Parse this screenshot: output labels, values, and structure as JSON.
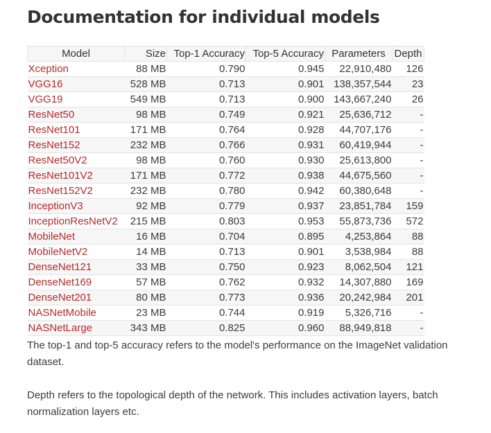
{
  "page": {
    "title": "Documentation for individual models"
  },
  "table": {
    "headers": {
      "model": "Model",
      "size": "Size",
      "top1": "Top-1 Accuracy",
      "top5": "Top-5 Accuracy",
      "params": "Parameters",
      "depth": "Depth"
    },
    "rows": [
      {
        "model": "Xception",
        "size": "88 MB",
        "top1": "0.790",
        "top5": "0.945",
        "params": "22,910,480",
        "depth": "126"
      },
      {
        "model": "VGG16",
        "size": "528 MB",
        "top1": "0.713",
        "top5": "0.901",
        "params": "138,357,544",
        "depth": "23"
      },
      {
        "model": "VGG19",
        "size": "549 MB",
        "top1": "0.713",
        "top5": "0.900",
        "params": "143,667,240",
        "depth": "26"
      },
      {
        "model": "ResNet50",
        "size": "98 MB",
        "top1": "0.749",
        "top5": "0.921",
        "params": "25,636,712",
        "depth": "-"
      },
      {
        "model": "ResNet101",
        "size": "171 MB",
        "top1": "0.764",
        "top5": "0.928",
        "params": "44,707,176",
        "depth": "-"
      },
      {
        "model": "ResNet152",
        "size": "232 MB",
        "top1": "0.766",
        "top5": "0.931",
        "params": "60,419,944",
        "depth": "-"
      },
      {
        "model": "ResNet50V2",
        "size": "98 MB",
        "top1": "0.760",
        "top5": "0.930",
        "params": "25,613,800",
        "depth": "-"
      },
      {
        "model": "ResNet101V2",
        "size": "171 MB",
        "top1": "0.772",
        "top5": "0.938",
        "params": "44,675,560",
        "depth": "-"
      },
      {
        "model": "ResNet152V2",
        "size": "232 MB",
        "top1": "0.780",
        "top5": "0.942",
        "params": "60,380,648",
        "depth": "-"
      },
      {
        "model": "InceptionV3",
        "size": "92 MB",
        "top1": "0.779",
        "top5": "0.937",
        "params": "23,851,784",
        "depth": "159"
      },
      {
        "model": "InceptionResNetV2",
        "size": "215 MB",
        "top1": "0.803",
        "top5": "0.953",
        "params": "55,873,736",
        "depth": "572"
      },
      {
        "model": "MobileNet",
        "size": "16 MB",
        "top1": "0.704",
        "top5": "0.895",
        "params": "4,253,864",
        "depth": "88"
      },
      {
        "model": "MobileNetV2",
        "size": "14 MB",
        "top1": "0.713",
        "top5": "0.901",
        "params": "3,538,984",
        "depth": "88"
      },
      {
        "model": "DenseNet121",
        "size": "33 MB",
        "top1": "0.750",
        "top5": "0.923",
        "params": "8,062,504",
        "depth": "121"
      },
      {
        "model": "DenseNet169",
        "size": "57 MB",
        "top1": "0.762",
        "top5": "0.932",
        "params": "14,307,880",
        "depth": "169"
      },
      {
        "model": "DenseNet201",
        "size": "80 MB",
        "top1": "0.773",
        "top5": "0.936",
        "params": "20,242,984",
        "depth": "201"
      },
      {
        "model": "NASNetMobile",
        "size": "23 MB",
        "top1": "0.744",
        "top5": "0.919",
        "params": "5,326,716",
        "depth": "-"
      },
      {
        "model": "NASNetLarge",
        "size": "343 MB",
        "top1": "0.825",
        "top5": "0.960",
        "params": "88,949,818",
        "depth": "-"
      }
    ]
  },
  "notes": {
    "accuracy_note": "The top-1 and top-5 accuracy refers to the model's performance on the ImageNet validation dataset.",
    "depth_note": "Depth refers to the topological depth of the network. This includes activation layers, batch normalization layers etc."
  },
  "colors": {
    "link": "#b52a2a",
    "text": "#3b3b3b",
    "row_stripe": "#f6f6f6",
    "border": "#e4e4e4"
  }
}
